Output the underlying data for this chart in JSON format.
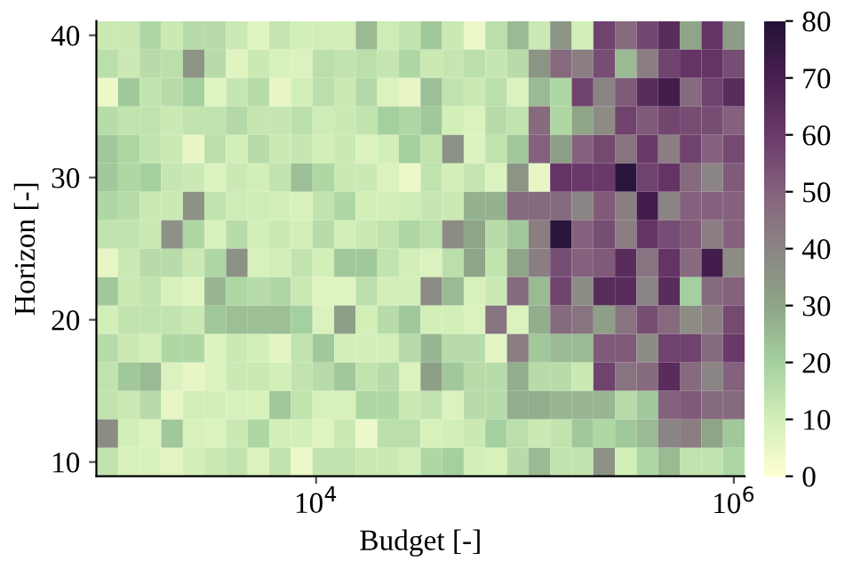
{
  "chart_data": {
    "type": "heatmap",
    "xlabel": "Budget [-]",
    "ylabel": "Horizon [-]",
    "log": "x",
    "x": [
      1000,
      1269,
      1610,
      2043,
      2593,
      3290,
      4175,
      5298,
      6723,
      8532,
      10830,
      13740,
      17430,
      22120,
      28070,
      35620,
      45200,
      57360,
      72790,
      92370,
      117200,
      148700,
      188700,
      239500,
      303900,
      385700,
      489400,
      621000,
      788000,
      1000000
    ],
    "y": [
      40,
      38,
      36,
      34,
      32,
      30,
      28,
      26,
      24,
      22,
      20,
      18,
      16,
      14,
      12,
      10
    ],
    "xlim": [
      887,
      1127000
    ],
    "ylim": [
      9,
      41
    ],
    "xticks": [
      {
        "value": 10000,
        "label": "10$^{4}$"
      },
      {
        "value": 1000000,
        "label": "10$^{6}$"
      }
    ],
    "yticks": [
      10,
      20,
      30,
      40
    ],
    "clim": [
      0,
      80
    ],
    "cticks": [
      0,
      10,
      20,
      30,
      40,
      50,
      60,
      70,
      80
    ],
    "cells": [
      [
        12,
        12,
        18,
        12,
        16,
        16,
        12,
        7,
        13,
        10,
        10,
        10,
        25,
        11,
        14,
        22,
        12,
        4,
        15,
        25,
        12,
        35,
        10,
        58,
        48,
        57,
        65,
        30,
        62,
        33
      ],
      [
        15,
        12,
        16,
        15,
        35,
        16,
        7,
        12,
        9,
        8,
        15,
        14,
        15,
        13,
        18,
        12,
        13,
        15,
        13,
        16,
        35,
        48,
        42,
        55,
        25,
        42,
        58,
        62,
        62,
        55
      ],
      [
        4,
        22,
        14,
        16,
        20,
        7,
        13,
        16,
        5,
        10,
        15,
        12,
        17,
        8,
        5,
        24,
        14,
        12,
        15,
        8,
        25,
        18,
        58,
        40,
        52,
        65,
        72,
        48,
        58,
        65
      ],
      [
        16,
        14,
        14,
        12,
        14,
        14,
        17,
        13,
        13,
        15,
        11,
        12,
        14,
        20,
        18,
        22,
        10,
        8,
        16,
        14,
        48,
        18,
        30,
        38,
        58,
        52,
        57,
        55,
        55,
        50
      ],
      [
        22,
        18,
        14,
        12,
        5,
        15,
        10,
        16,
        12,
        13,
        10,
        12,
        8,
        10,
        20,
        14,
        36,
        8,
        14,
        22,
        50,
        32,
        50,
        56,
        45,
        60,
        42,
        58,
        50,
        56
      ],
      [
        22,
        18,
        20,
        13,
        12,
        8,
        12,
        10,
        14,
        24,
        18,
        12,
        12,
        8,
        4,
        14,
        10,
        13,
        8,
        35,
        5,
        62,
        60,
        60,
        78,
        58,
        62,
        48,
        40,
        52
      ],
      [
        18,
        16,
        12,
        12,
        36,
        14,
        11,
        11,
        10,
        9,
        14,
        18,
        10,
        10,
        11,
        13,
        12,
        27,
        27,
        48,
        48,
        48,
        40,
        52,
        42,
        72,
        40,
        50,
        50,
        50
      ],
      [
        14,
        14,
        12,
        36,
        18,
        9,
        16,
        10,
        12,
        10,
        16,
        10,
        12,
        14,
        18,
        15,
        38,
        30,
        16,
        22,
        42,
        78,
        50,
        55,
        42,
        62,
        55,
        52,
        42,
        50
      ],
      [
        5,
        12,
        16,
        16,
        12,
        18,
        36,
        9,
        10,
        14,
        10,
        22,
        22,
        14,
        10,
        8,
        15,
        30,
        14,
        30,
        42,
        55,
        50,
        52,
        65,
        45,
        62,
        48,
        72,
        38
      ],
      [
        22,
        12,
        14,
        9,
        7,
        26,
        18,
        16,
        18,
        12,
        7,
        7,
        15,
        10,
        10,
        38,
        25,
        9,
        12,
        48,
        25,
        58,
        38,
        65,
        65,
        40,
        65,
        20,
        48,
        50
      ],
      [
        10,
        14,
        14,
        14,
        12,
        22,
        24,
        24,
        24,
        20,
        8,
        32,
        10,
        16,
        22,
        10,
        10,
        8,
        45,
        8,
        28,
        48,
        45,
        32,
        45,
        55,
        48,
        38,
        42,
        56
      ],
      [
        16,
        12,
        10,
        18,
        18,
        8,
        12,
        10,
        6,
        14,
        22,
        10,
        10,
        10,
        16,
        26,
        16,
        16,
        6,
        42,
        22,
        25,
        25,
        52,
        52,
        38,
        58,
        58,
        48,
        60
      ],
      [
        14,
        22,
        25,
        8,
        5,
        8,
        12,
        12,
        10,
        14,
        16,
        22,
        14,
        16,
        8,
        32,
        22,
        16,
        16,
        28,
        16,
        16,
        12,
        58,
        45,
        48,
        65,
        48,
        40,
        50
      ],
      [
        14,
        12,
        16,
        5,
        10,
        10,
        9,
        9,
        22,
        14,
        9,
        9,
        18,
        18,
        12,
        14,
        8,
        16,
        16,
        28,
        28,
        26,
        26,
        26,
        16,
        22,
        50,
        52,
        48,
        48
      ],
      [
        38,
        10,
        8,
        22,
        9,
        8,
        12,
        18,
        10,
        10,
        7,
        12,
        4,
        15,
        15,
        9,
        10,
        12,
        20,
        15,
        12,
        14,
        22,
        18,
        22,
        25,
        40,
        42,
        30,
        22
      ],
      [
        14,
        9,
        9,
        6,
        10,
        12,
        14,
        8,
        14,
        4,
        14,
        14,
        12,
        12,
        10,
        18,
        20,
        10,
        9,
        16,
        25,
        14,
        14,
        36,
        10,
        18,
        25,
        14,
        14,
        18
      ]
    ]
  }
}
